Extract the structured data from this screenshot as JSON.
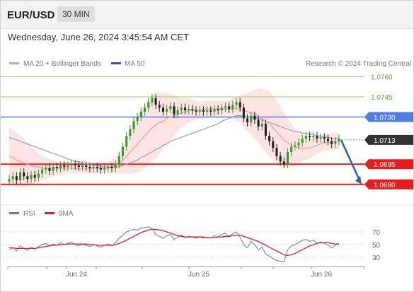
{
  "header": {
    "symbol": "EUR/USD",
    "timeframe": "30 MIN",
    "datetime": "Wednesday, June 26, 2024 3:45:54 AM CET"
  },
  "legend": {
    "ma20_label": "MA 20 + Bollinger Bands",
    "ma50_label": "MA 50",
    "credit": "Research © 2024 Trading Central",
    "rsi_label": "RSI",
    "ma9_label": "9MA"
  },
  "colors": {
    "resistance_green": "#8fd16e",
    "pivot_blue": "#4f7ee0",
    "support_red": "#e81c1c",
    "ma20": "#f59a9a",
    "ma50": "#9aa3c8",
    "bollinger_fill": "#fde0de",
    "candle_up": "#2e9e2e",
    "candle_down": "#222222",
    "last_price": "#333333"
  },
  "chart_data": [
    {
      "type": "candlestick",
      "ylim": [
        1.0672,
        1.0766
      ],
      "x_ticks": [
        "Jun 24",
        "Jun 25",
        "Jun 26"
      ],
      "levels": [
        {
          "value": "1.0760",
          "kind": "resistance"
        },
        {
          "value": "1.0745",
          "kind": "resistance"
        },
        {
          "value": "1.0730",
          "kind": "pivot"
        },
        {
          "value": "1.0713",
          "kind": "last"
        },
        {
          "value": "1.0695",
          "kind": "support"
        },
        {
          "value": "1.0680",
          "kind": "support"
        }
      ],
      "close": [
        1.0684,
        1.0686,
        1.0683,
        1.0689,
        1.0686,
        1.0684,
        1.0687,
        1.0685,
        1.0688,
        1.0691,
        1.0692,
        1.069,
        1.0693,
        1.0692,
        1.0694,
        1.0693,
        1.0694,
        1.0695,
        1.0694,
        1.0693,
        1.0694,
        1.0693,
        1.0692,
        1.0693,
        1.0692,
        1.0691,
        1.0692,
        1.0693,
        1.0692,
        1.0695,
        1.0701,
        1.0708,
        1.0716,
        1.0721,
        1.0727,
        1.073,
        1.0734,
        1.0737,
        1.0741,
        1.0744,
        1.0739,
        1.0737,
        1.0734,
        1.0736,
        1.0738,
        1.0732,
        1.0735,
        1.0737,
        1.0735,
        1.0736,
        1.0735,
        1.0734,
        1.0735,
        1.0734,
        1.0735,
        1.0734,
        1.0736,
        1.0735,
        1.0737,
        1.0738,
        1.0736,
        1.0739,
        1.0741,
        1.0737,
        1.0729,
        1.0726,
        1.0731,
        1.0728,
        1.0723,
        1.0725,
        1.0716,
        1.0712,
        1.0707,
        1.0701,
        1.0697,
        1.0695,
        1.0704,
        1.0708,
        1.0709,
        1.0711,
        1.0714,
        1.0716,
        1.0715,
        1.0716,
        1.0714,
        1.0715,
        1.0714,
        1.0712,
        1.071,
        1.0712,
        1.0714
      ],
      "ma20": [
        1.0701,
        1.07,
        1.0698,
        1.0697,
        1.0696,
        1.0695,
        1.0694,
        1.0693,
        1.0693,
        1.0692,
        1.0692,
        1.0692,
        1.0692,
        1.0692,
        1.0692,
        1.0692,
        1.0692,
        1.0692,
        1.0692,
        1.0692,
        1.0692,
        1.0692,
        1.0692,
        1.0692,
        1.0692,
        1.0692,
        1.0692,
        1.0692,
        1.0693,
        1.0694,
        1.0696,
        1.0698,
        1.0701,
        1.0704,
        1.0707,
        1.071,
        1.0713,
        1.0716,
        1.0719,
        1.0722,
        1.0724,
        1.0726,
        1.0727,
        1.0729,
        1.073,
        1.0731,
        1.0732,
        1.0733,
        1.0734,
        1.0735,
        1.0735,
        1.0735,
        1.0735,
        1.0736,
        1.0736,
        1.0736,
        1.0736,
        1.0736,
        1.0736,
        1.0736,
        1.0736,
        1.0736,
        1.0736,
        1.0736,
        1.0735,
        1.0734,
        1.0733,
        1.0732,
        1.0731,
        1.0729,
        1.0727,
        1.0725,
        1.0722,
        1.0719,
        1.0716,
        1.0713,
        1.0711,
        1.0709,
        1.0708,
        1.0707,
        1.0707,
        1.0707,
        1.0707,
        1.0708,
        1.0709,
        1.071,
        1.0711,
        1.0711,
        1.0712,
        1.0712,
        1.0712
      ],
      "ma50": [
        1.0715,
        1.0714,
        1.0713,
        1.0712,
        1.0711,
        1.071,
        1.0709,
        1.0708,
        1.0707,
        1.0706,
        1.0705,
        1.0704,
        1.0703,
        1.0702,
        1.0701,
        1.07,
        1.0699,
        1.0698,
        1.0697,
        1.0697,
        1.0696,
        1.0695,
        1.0695,
        1.0694,
        1.0694,
        1.0693,
        1.0693,
        1.0693,
        1.0693,
        1.0693,
        1.0693,
        1.0694,
        1.0695,
        1.0696,
        1.0697,
        1.0698,
        1.07,
        1.0701,
        1.0703,
        1.0704,
        1.0706,
        1.0707,
        1.0709,
        1.071,
        1.0712,
        1.0713,
        1.0714,
        1.0715,
        1.0716,
        1.0717,
        1.0718,
        1.0719,
        1.072,
        1.0721,
        1.0722,
        1.0723,
        1.0724,
        1.0725,
        1.0727,
        1.0728,
        1.0729,
        1.073,
        1.0731,
        1.0731,
        1.0731,
        1.073,
        1.073,
        1.0729,
        1.0729,
        1.0728,
        1.0727,
        1.0726,
        1.0725,
        1.0724,
        1.0723,
        1.0722,
        1.0721,
        1.072,
        1.0719,
        1.0719,
        1.0718,
        1.0718,
        1.0717,
        1.0717,
        1.0716,
        1.0716,
        1.0715,
        1.0715,
        1.0714,
        1.0714,
        1.0714
      ],
      "bb_width": [
        0.0021,
        0.0021,
        0.002,
        0.0019,
        0.0018,
        0.0016,
        0.0014,
        0.0012,
        0.001,
        0.0009,
        0.0008,
        0.0007,
        0.0006,
        0.0005,
        0.0005,
        0.0004,
        0.0004,
        0.0004,
        0.0004,
        0.0004,
        0.0004,
        0.0004,
        0.0004,
        0.0004,
        0.0004,
        0.0004,
        0.0004,
        0.0004,
        0.0005,
        0.0006,
        0.0008,
        0.001,
        0.0013,
        0.0016,
        0.0019,
        0.0021,
        0.0023,
        0.0024,
        0.0025,
        0.0025,
        0.0024,
        0.0023,
        0.0021,
        0.0019,
        0.0017,
        0.0015,
        0.0013,
        0.0011,
        0.001,
        0.0009,
        0.0008,
        0.0007,
        0.0006,
        0.0006,
        0.0006,
        0.0006,
        0.0006,
        0.0006,
        0.0006,
        0.0006,
        0.0007,
        0.0008,
        0.0009,
        0.001,
        0.0012,
        0.0014,
        0.0016,
        0.0018,
        0.002,
        0.0022,
        0.0023,
        0.0024,
        0.0024,
        0.0023,
        0.0022,
        0.002,
        0.0018,
        0.0016,
        0.0014,
        0.0012,
        0.001,
        0.0009,
        0.0008,
        0.0007,
        0.0006,
        0.0006,
        0.0006,
        0.0006,
        0.0006,
        0.0006,
        0.0006
      ],
      "projection": {
        "from": 1.0713,
        "to": 1.068
      }
    },
    {
      "type": "line",
      "title": "RSI",
      "ylim": [
        20,
        80
      ],
      "y_ticks": [
        "70",
        "50",
        "30"
      ],
      "series": [
        {
          "name": "RSI",
          "values": [
            42,
            45,
            40,
            48,
            44,
            41,
            46,
            43,
            47,
            50,
            52,
            48,
            51,
            49,
            53,
            50,
            52,
            54,
            50,
            48,
            51,
            49,
            47,
            50,
            48,
            46,
            49,
            51,
            48,
            53,
            60,
            65,
            70,
            72,
            74,
            73,
            76,
            77,
            78,
            75,
            66,
            63,
            60,
            64,
            66,
            58,
            62,
            65,
            61,
            63,
            62,
            60,
            62,
            60,
            62,
            60,
            64,
            62,
            66,
            68,
            63,
            67,
            70,
            62,
            50,
            45,
            55,
            50,
            42,
            46,
            35,
            32,
            28,
            25,
            24,
            23,
            42,
            48,
            50,
            53,
            57,
            58,
            55,
            57,
            52,
            54,
            52,
            49,
            45,
            49,
            52
          ]
        },
        {
          "name": "9MA",
          "values": [
            45,
            45,
            44,
            44,
            44,
            44,
            44,
            44,
            45,
            46,
            47,
            48,
            49,
            49,
            50,
            50,
            51,
            51,
            51,
            51,
            51,
            51,
            50,
            50,
            49,
            49,
            49,
            49,
            49,
            50,
            52,
            54,
            57,
            60,
            63,
            66,
            69,
            71,
            73,
            74,
            74,
            73,
            72,
            70,
            68,
            66,
            64,
            63,
            62,
            62,
            62,
            62,
            62,
            62,
            61,
            61,
            61,
            62,
            62,
            63,
            63,
            64,
            65,
            65,
            63,
            61,
            59,
            57,
            55,
            52,
            49,
            46,
            43,
            40,
            37,
            34,
            33,
            34,
            36,
            39,
            42,
            45,
            48,
            50,
            52,
            53,
            53,
            53,
            52,
            51,
            51
          ]
        }
      ]
    }
  ]
}
